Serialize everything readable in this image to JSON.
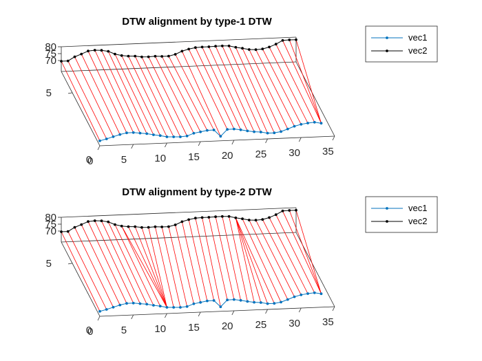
{
  "colors": {
    "vec1": "#0072BD",
    "vec2": "#000000",
    "align": "#FF0000",
    "axis": "#262626"
  },
  "chart_data": [
    {
      "type": "line",
      "title": "DTW alignment by type-1 DTW",
      "x_ticks": [
        "0",
        "5",
        "10",
        "15",
        "20",
        "25",
        "30",
        "35"
      ],
      "y_ticks": [
        "5"
      ],
      "z_ticks": [
        "70",
        "75",
        "80"
      ],
      "xlim": [
        0,
        35
      ],
      "zlim": [
        62,
        80
      ],
      "legend": {
        "entries": [
          "vec1",
          "vec2"
        ],
        "position": "top-right"
      },
      "series": [
        {
          "name": "vec1",
          "y_index": 0,
          "values": [
            65.6,
            66.8,
            68.2,
            69.6,
            70.6,
            70.6,
            70.0,
            69.4,
            68.4,
            67.6,
            66.5,
            66.3,
            66.1,
            66.5,
            68.3,
            69.1,
            70.0,
            70.1,
            65.3,
            70.1,
            70.2,
            69.4,
            68.4,
            67.6,
            67.2,
            66.2,
            66.2,
            66.9,
            68.6,
            70.4,
            71.6,
            72.3,
            72.7,
            71.8
          ]
        },
        {
          "name": "vec2",
          "y_index": 7,
          "values": [
            69.5,
            69.5,
            72.3,
            74.1,
            76.1,
            76.5,
            76.2,
            75.3,
            73.1,
            71.8,
            71.2,
            71.0,
            70.2,
            70.1,
            70.3,
            70.0,
            70.0,
            71.1,
            73.2,
            74.5,
            75.4,
            75.6,
            75.6,
            75.8,
            75.8,
            75.6,
            74.4,
            73.5,
            72.4,
            72.1,
            72.4,
            73.6,
            75.5,
            78.0,
            78.2,
            78.1
          ]
        }
      ],
      "alignment": [
        [
          0,
          0
        ],
        [
          1,
          1
        ],
        [
          2,
          2
        ],
        [
          3,
          3
        ],
        [
          4,
          4
        ],
        [
          5,
          5
        ],
        [
          6,
          6
        ],
        [
          7,
          7
        ],
        [
          8,
          8
        ],
        [
          9,
          9
        ],
        [
          10,
          10
        ],
        [
          11,
          11
        ],
        [
          12,
          12
        ],
        [
          13,
          13
        ],
        [
          14,
          14
        ],
        [
          15,
          15
        ],
        [
          16,
          16
        ],
        [
          17,
          17
        ],
        [
          18,
          18
        ],
        [
          19,
          19
        ],
        [
          20,
          20
        ],
        [
          21,
          21
        ],
        [
          22,
          22
        ],
        [
          23,
          23
        ],
        [
          24,
          24
        ],
        [
          25,
          25
        ],
        [
          26,
          26
        ],
        [
          27,
          27
        ],
        [
          28,
          28
        ],
        [
          29,
          29
        ],
        [
          30,
          30
        ],
        [
          31,
          31
        ],
        [
          32,
          32
        ],
        [
          33,
          33
        ],
        [
          33,
          34
        ],
        [
          33,
          35
        ]
      ]
    },
    {
      "type": "line",
      "title": "DTW alignment by type-2 DTW",
      "x_ticks": [
        "0",
        "5",
        "10",
        "15",
        "20",
        "25",
        "30",
        "35"
      ],
      "y_ticks": [
        "5"
      ],
      "z_ticks": [
        "70",
        "75",
        "80"
      ],
      "xlim": [
        0,
        35
      ],
      "zlim": [
        62,
        80
      ],
      "legend": {
        "entries": [
          "vec1",
          "vec2"
        ],
        "position": "top-right"
      },
      "series": [
        {
          "name": "vec1",
          "y_index": 0,
          "values": [
            65.6,
            66.8,
            68.2,
            69.6,
            70.6,
            70.6,
            70.0,
            69.4,
            68.4,
            67.6,
            66.5,
            66.3,
            66.1,
            66.5,
            68.3,
            69.1,
            70.0,
            70.1,
            65.3,
            70.1,
            70.2,
            69.4,
            68.4,
            67.6,
            67.2,
            66.2,
            66.2,
            66.9,
            68.6,
            70.4,
            71.6,
            72.3,
            72.7,
            71.8
          ]
        },
        {
          "name": "vec2",
          "y_index": 7,
          "values": [
            69.5,
            69.5,
            72.3,
            74.1,
            76.1,
            76.5,
            76.2,
            75.3,
            73.1,
            71.8,
            71.2,
            71.0,
            70.2,
            70.1,
            70.3,
            70.0,
            70.0,
            71.1,
            73.2,
            74.5,
            75.4,
            75.6,
            75.6,
            75.8,
            75.8,
            75.6,
            74.4,
            73.5,
            72.4,
            72.1,
            72.4,
            73.6,
            75.5,
            78.0,
            78.2,
            78.1
          ]
        }
      ],
      "alignment": [
        [
          0,
          0
        ],
        [
          1,
          1
        ],
        [
          2,
          2
        ],
        [
          3,
          3
        ],
        [
          4,
          4
        ],
        [
          5,
          5
        ],
        [
          6,
          6
        ],
        [
          7,
          7
        ],
        [
          8,
          8
        ],
        [
          9,
          9
        ],
        [
          10,
          9
        ],
        [
          10,
          10
        ],
        [
          10,
          11
        ],
        [
          10,
          12
        ],
        [
          10,
          13
        ],
        [
          11,
          14
        ],
        [
          12,
          15
        ],
        [
          13,
          16
        ],
        [
          14,
          17
        ],
        [
          15,
          18
        ],
        [
          16,
          19
        ],
        [
          17,
          20
        ],
        [
          18,
          21
        ],
        [
          19,
          22
        ],
        [
          20,
          23
        ],
        [
          21,
          24
        ],
        [
          22,
          25
        ],
        [
          23,
          26
        ],
        [
          24,
          26
        ],
        [
          25,
          26
        ],
        [
          26,
          26
        ],
        [
          27,
          27
        ],
        [
          28,
          28
        ],
        [
          29,
          29
        ],
        [
          30,
          30
        ],
        [
          31,
          31
        ],
        [
          32,
          32
        ],
        [
          33,
          33
        ],
        [
          33,
          34
        ],
        [
          33,
          35
        ]
      ]
    }
  ]
}
